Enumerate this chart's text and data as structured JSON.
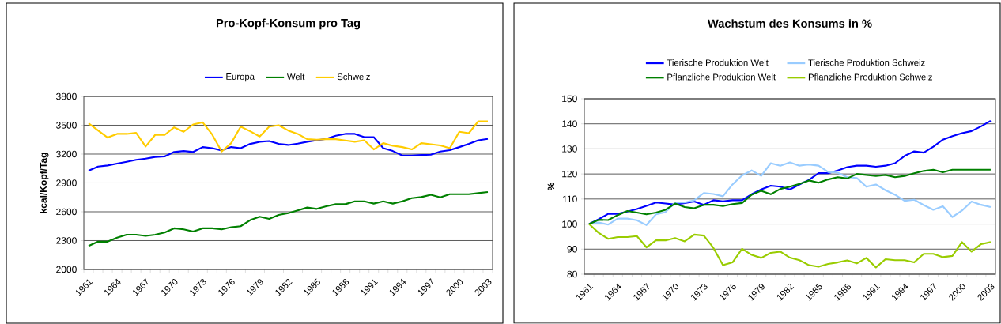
{
  "chart_data": [
    {
      "type": "line",
      "title": "Pro-Kopf-Konsum pro Tag",
      "ylabel": "kcal/Kopf/Tag",
      "categories": [
        "1961",
        null,
        null,
        "1964",
        null,
        null,
        "1967",
        null,
        null,
        "1970",
        null,
        null,
        "1973",
        null,
        null,
        "1976",
        null,
        null,
        "1979",
        null,
        null,
        "1982",
        null,
        null,
        "1985",
        null,
        null,
        "1988",
        null,
        null,
        "1991",
        null,
        null,
        "1994",
        null,
        null,
        "1997",
        null,
        null,
        "2000",
        null,
        null,
        "2003"
      ],
      "series": [
        {
          "name": "Europa",
          "color": "#0000ff",
          "values": [
            3028,
            3071,
            3082,
            3101,
            3120,
            3140,
            3153,
            3170,
            3175,
            3222,
            3232,
            3222,
            3273,
            3262,
            3238,
            3273,
            3262,
            3306,
            3328,
            3336,
            3306,
            3295,
            3309,
            3328,
            3344,
            3358,
            3391,
            3410,
            3410,
            3377,
            3377,
            3262,
            3232,
            3186,
            3186,
            3191,
            3194,
            3227,
            3241,
            3273,
            3306,
            3344,
            3358
          ]
        },
        {
          "name": "Welt",
          "color": "#008000",
          "values": [
            2245,
            2289,
            2289,
            2330,
            2362,
            2362,
            2349,
            2362,
            2384,
            2428,
            2417,
            2395,
            2428,
            2428,
            2417,
            2439,
            2450,
            2513,
            2548,
            2526,
            2567,
            2586,
            2614,
            2644,
            2630,
            2657,
            2679,
            2679,
            2709,
            2709,
            2685,
            2709,
            2685,
            2709,
            2742,
            2753,
            2777,
            2750,
            2783,
            2783,
            2783,
            2794,
            2805
          ]
        },
        {
          "name": "Schweiz",
          "color": "#ffcc00",
          "values": [
            3519,
            3445,
            3372,
            3410,
            3410,
            3421,
            3279,
            3399,
            3399,
            3478,
            3432,
            3508,
            3530,
            3404,
            3227,
            3314,
            3486,
            3437,
            3383,
            3486,
            3500,
            3445,
            3410,
            3355,
            3350,
            3355,
            3355,
            3342,
            3328,
            3344,
            3249,
            3314,
            3287,
            3273,
            3249,
            3314,
            3303,
            3290,
            3262,
            3432,
            3418,
            3541,
            3541
          ]
        }
      ],
      "ylim": [
        2000,
        3800
      ],
      "yticks": [
        2000,
        2300,
        2600,
        2900,
        3200,
        3500,
        3800
      ],
      "grid": "y",
      "legend": "top"
    },
    {
      "type": "line",
      "title": "Wachstum des Konsums in %",
      "ylabel": "%",
      "categories": [
        "1961",
        null,
        null,
        "1964",
        null,
        null,
        "1967",
        null,
        null,
        "1970",
        null,
        null,
        "1973",
        null,
        null,
        "1976",
        null,
        null,
        "1979",
        null,
        null,
        "1982",
        null,
        null,
        "1985",
        null,
        null,
        "1988",
        null,
        null,
        "1991",
        null,
        null,
        "1994",
        null,
        null,
        "1997",
        null,
        null,
        "2000",
        null,
        null,
        "2003"
      ],
      "series": [
        {
          "name": "Tierische Produktion Welt",
          "color": "#0000ff",
          "values": [
            100,
            101.9,
            104.1,
            104.1,
            105.0,
            106.0,
            107.3,
            108.6,
            108.2,
            107.8,
            108.4,
            109.0,
            107.7,
            109.5,
            109.1,
            109.5,
            109.5,
            111.9,
            113.8,
            115.3,
            114.9,
            113.8,
            115.8,
            117.6,
            120.3,
            120.3,
            121.4,
            122.7,
            123.3,
            123.3,
            122.9,
            123.3,
            124.3,
            127.2,
            129.0,
            128.5,
            130.9,
            133.7,
            135.1,
            136.3,
            137.1,
            139.0,
            141.2
          ]
        },
        {
          "name": "Tierische Produktion Schweiz",
          "color": "#99ccff",
          "values": [
            100,
            100.6,
            99.8,
            102.2,
            102.2,
            101.5,
            99.6,
            103.9,
            104.8,
            108.6,
            108.6,
            109.5,
            112.4,
            112.0,
            111.1,
            115.8,
            119.4,
            121.4,
            119.2,
            124.3,
            123.3,
            124.6,
            123.3,
            123.8,
            123.3,
            120.8,
            120.5,
            118.7,
            118.4,
            114.9,
            115.8,
            113.5,
            111.7,
            109.3,
            109.7,
            107.6,
            105.7,
            107.1,
            102.8,
            105.4,
            109.0,
            107.7,
            106.8
          ]
        },
        {
          "name": "Pflanzliche Produktion Welt",
          "color": "#008000",
          "values": [
            100,
            101.7,
            101.6,
            103.6,
            105.2,
            104.6,
            103.9,
            104.6,
            105.7,
            108.2,
            106.8,
            106.3,
            107.7,
            107.7,
            107.2,
            108.0,
            108.4,
            111.7,
            113.3,
            111.9,
            114.0,
            114.9,
            116.0,
            117.4,
            116.5,
            117.8,
            118.7,
            118.2,
            120.0,
            119.6,
            119.2,
            119.6,
            118.7,
            119.2,
            120.3,
            121.2,
            121.7,
            120.7,
            121.7,
            121.7,
            121.7,
            121.7,
            121.7
          ]
        },
        {
          "name": "Pflanzliche Produktion Schweiz",
          "color": "#99cc00",
          "values": [
            100,
            96.5,
            94.1,
            94.8,
            94.8,
            95.2,
            90.7,
            93.5,
            93.5,
            94.4,
            93.1,
            95.8,
            95.4,
            90.5,
            83.6,
            84.7,
            90.1,
            87.7,
            86.5,
            88.5,
            89.0,
            86.6,
            85.6,
            83.6,
            83.0,
            84.1,
            84.7,
            85.5,
            84.3,
            86.5,
            82.7,
            86.0,
            85.6,
            85.6,
            84.7,
            88.1,
            88.1,
            86.8,
            87.3,
            92.8,
            89.0,
            92.0,
            92.8
          ]
        }
      ],
      "ylim": [
        80,
        150
      ],
      "yticks": [
        80,
        90,
        100,
        110,
        120,
        130,
        140,
        150
      ],
      "grid": "y",
      "legend": "top"
    }
  ]
}
